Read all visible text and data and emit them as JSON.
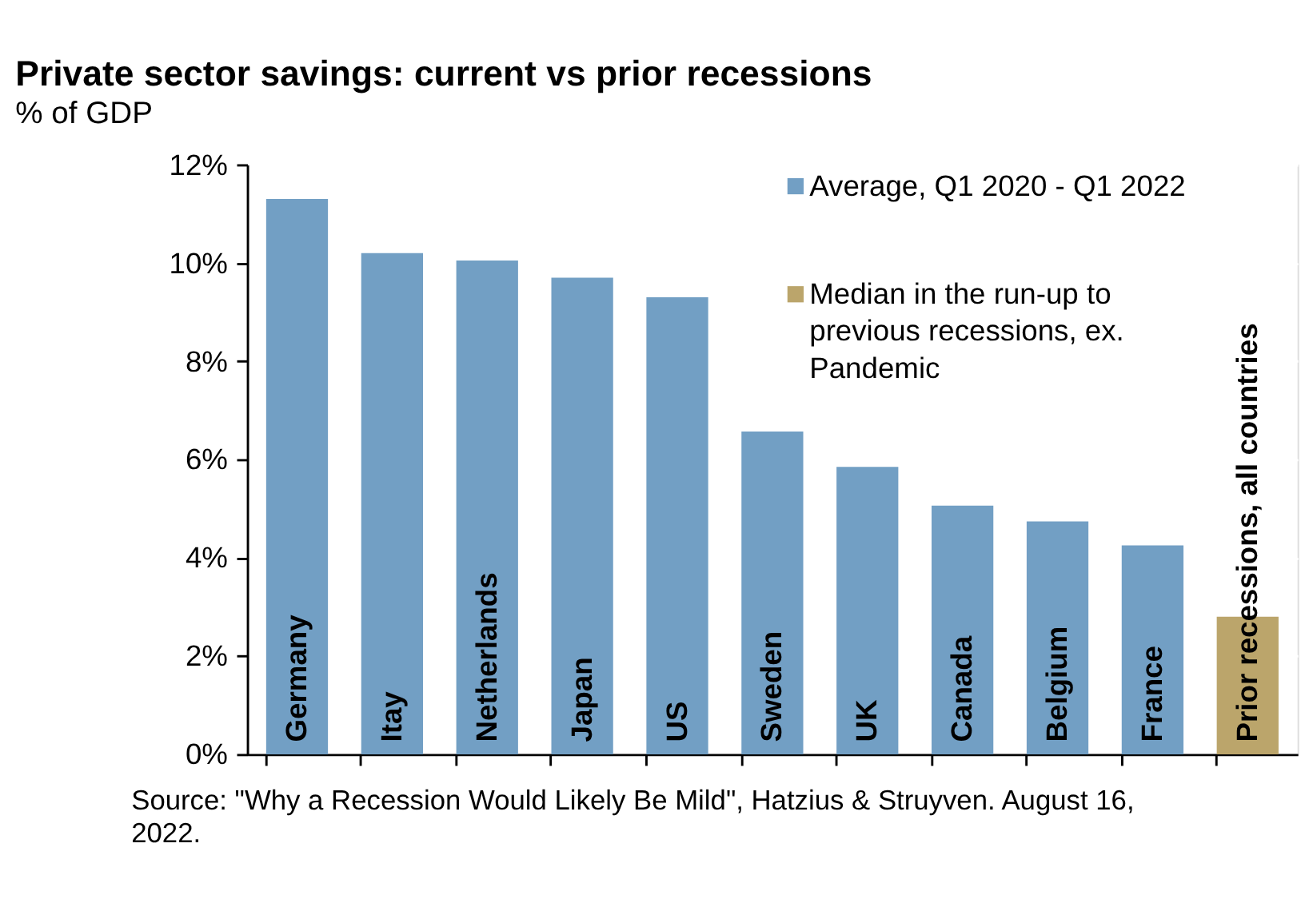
{
  "chart_data": {
    "type": "bar",
    "title": "Private sector savings: current vs prior recessions",
    "subtitle": "% of GDP",
    "categories": [
      "Germany",
      "Itay",
      "Netherlands",
      "Japan",
      "US",
      "Sweden",
      "UK",
      "Canada",
      "Belgium",
      "France",
      "Prior recessions, all countries"
    ],
    "series": [
      {
        "name": "Average, Q1 2020 - Q1 2022",
        "color": "#729fc4",
        "values": [
          11.3,
          10.2,
          10.05,
          9.7,
          9.3,
          6.57,
          5.85,
          5.06,
          4.74,
          4.25,
          null
        ]
      },
      {
        "name": "Median in the run-up to previous recessions, ex. Pandemic",
        "color": "#bba56b",
        "values": [
          null,
          null,
          null,
          null,
          null,
          null,
          null,
          null,
          null,
          null,
          2.8
        ]
      }
    ],
    "ylim": [
      0,
      12
    ],
    "yticks": [
      {
        "value": 0,
        "label": "0%"
      },
      {
        "value": 2,
        "label": "2%"
      },
      {
        "value": 4,
        "label": "4%"
      },
      {
        "value": 6,
        "label": "6%"
      },
      {
        "value": 8,
        "label": "8%"
      },
      {
        "value": 10,
        "label": "10%"
      },
      {
        "value": 12,
        "label": "12%"
      }
    ],
    "grid": "y",
    "legend": "top right",
    "annotations": [
      "Source: \"Why a Recession Would Likely Be Mild\", Hatzius & Struyven. August 16, 2022."
    ]
  }
}
